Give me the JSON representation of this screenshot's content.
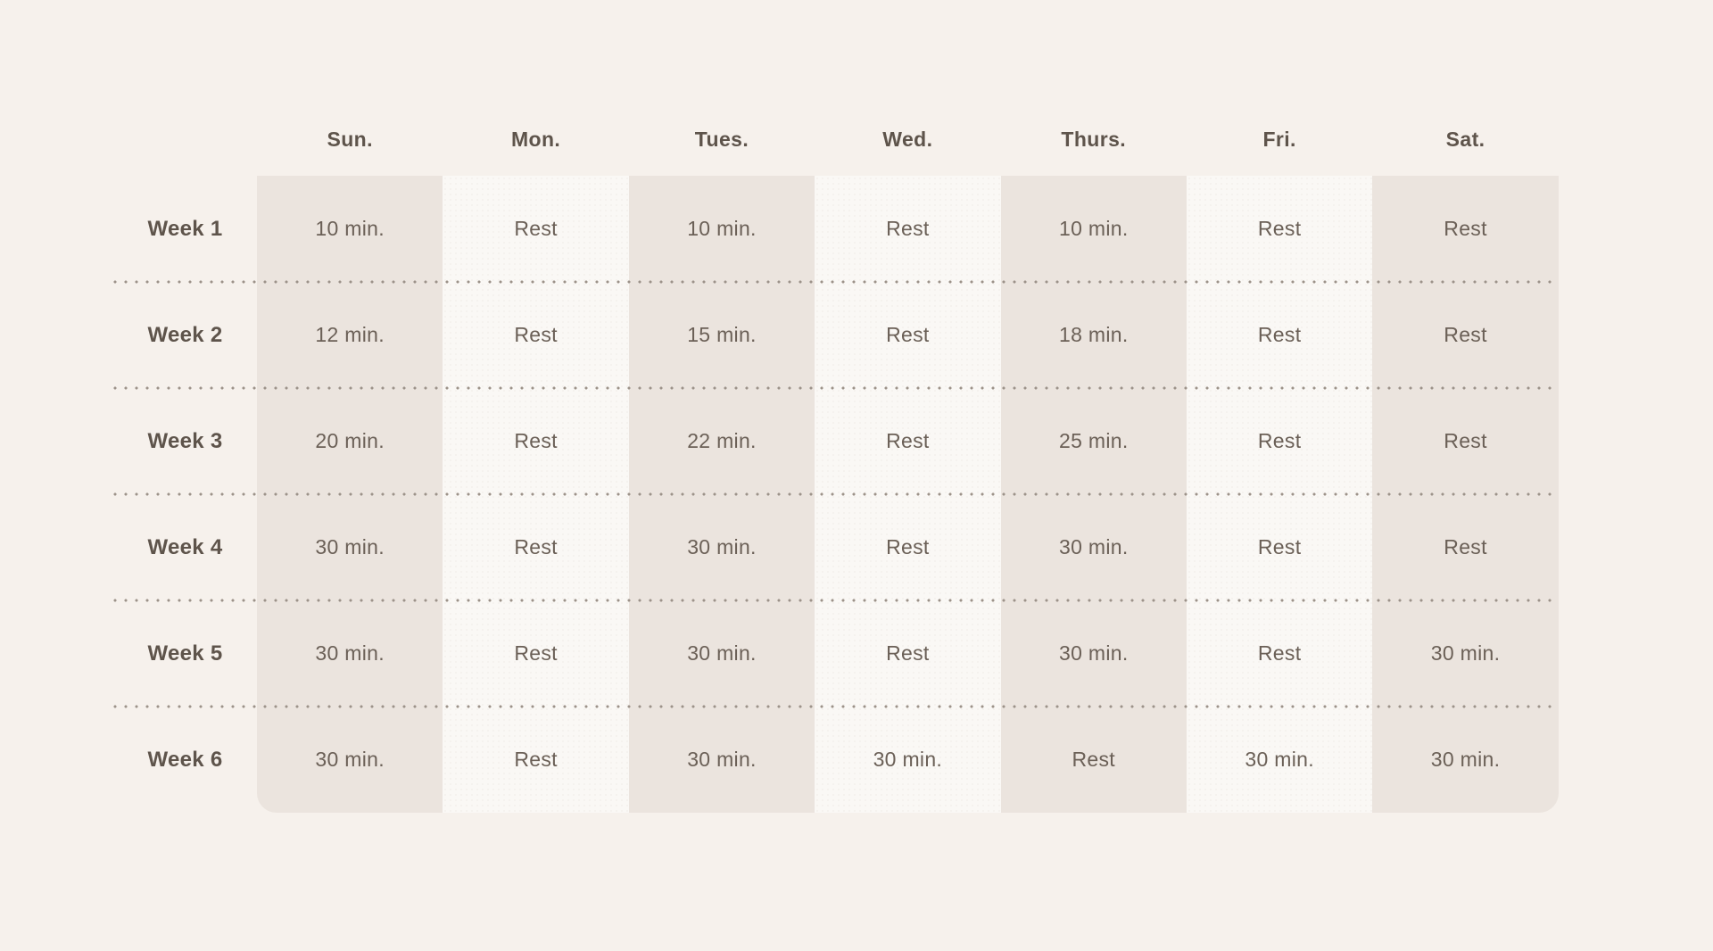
{
  "colors": {
    "page_background": "#f6f1ec",
    "column_dark": "#ebe4de",
    "column_light": "#faf8f5",
    "text": "#6b6057",
    "heading_text": "#5e544b",
    "separator_dots": "#9c9289"
  },
  "schedule": {
    "columns": [
      "Sun.",
      "Mon.",
      "Tues.",
      "Wed.",
      "Thurs.",
      "Fri.",
      "Sat."
    ],
    "rows": [
      {
        "label": "Week 1",
        "cells": [
          "10 min.",
          "Rest",
          "10 min.",
          "Rest",
          "10 min.",
          "Rest",
          "Rest"
        ]
      },
      {
        "label": "Week 2",
        "cells": [
          "12 min.",
          "Rest",
          "15 min.",
          "Rest",
          "18 min.",
          "Rest",
          "Rest"
        ]
      },
      {
        "label": "Week 3",
        "cells": [
          "20 min.",
          "Rest",
          "22 min.",
          "Rest",
          "25 min.",
          "Rest",
          "Rest"
        ]
      },
      {
        "label": "Week 4",
        "cells": [
          "30 min.",
          "Rest",
          "30 min.",
          "Rest",
          "30 min.",
          "Rest",
          "Rest"
        ]
      },
      {
        "label": "Week 5",
        "cells": [
          "30 min.",
          "Rest",
          "30 min.",
          "Rest",
          "30 min.",
          "Rest",
          "30 min."
        ]
      },
      {
        "label": "Week 6",
        "cells": [
          "30 min.",
          "Rest",
          "30 min.",
          "30 min.",
          "Rest",
          "30 min.",
          "30 min."
        ]
      }
    ]
  },
  "chart_data": {
    "type": "table",
    "title": "",
    "columns": [
      "",
      "Sun.",
      "Mon.",
      "Tues.",
      "Wed.",
      "Thurs.",
      "Fri.",
      "Sat."
    ],
    "rows": [
      [
        "Week 1",
        "10 min.",
        "Rest",
        "10 min.",
        "Rest",
        "10 min.",
        "Rest",
        "Rest"
      ],
      [
        "Week 2",
        "12 min.",
        "Rest",
        "15 min.",
        "Rest",
        "18 min.",
        "Rest",
        "Rest"
      ],
      [
        "Week 3",
        "20 min.",
        "Rest",
        "22 min.",
        "Rest",
        "25 min.",
        "Rest",
        "Rest"
      ],
      [
        "Week 4",
        "30 min.",
        "Rest",
        "30 min.",
        "Rest",
        "30 min.",
        "Rest",
        "Rest"
      ],
      [
        "Week 5",
        "30 min.",
        "Rest",
        "30 min.",
        "Rest",
        "30 min.",
        "Rest",
        "30 min."
      ],
      [
        "Week 6",
        "30 min.",
        "Rest",
        "30 min.",
        "30 min.",
        "Rest",
        "30 min.",
        "30 min."
      ]
    ],
    "layout_hints": {
      "column_striping": "alternating dark/light day columns starting dark on Sun.",
      "row_separator": "dotted line",
      "grid": "off",
      "legend": "none"
    }
  }
}
